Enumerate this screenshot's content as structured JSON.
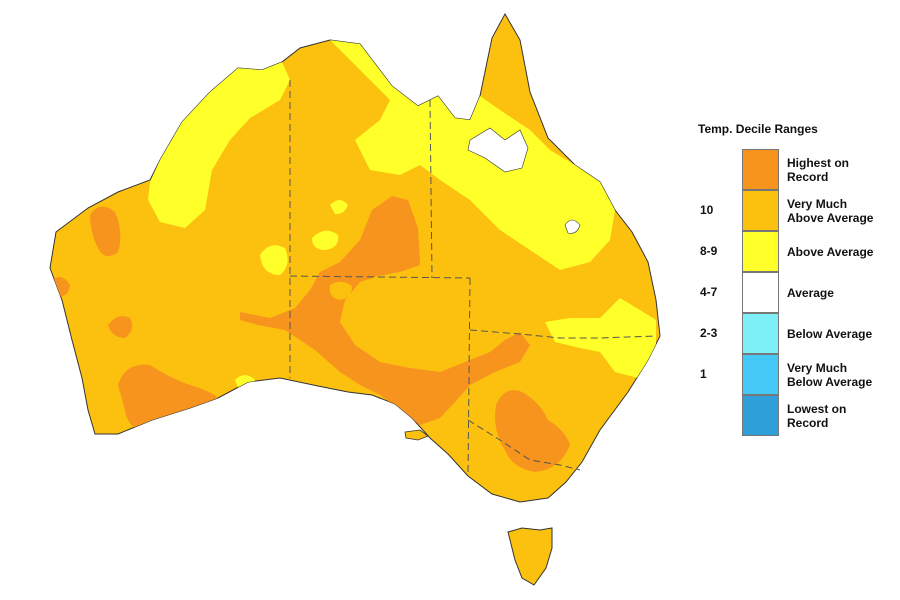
{
  "legend": {
    "title": "Temp. Decile Ranges",
    "items": [
      {
        "value": "",
        "label": "Highest on\nRecord",
        "color": "#f7941d"
      },
      {
        "value": "10",
        "label": "Very Much\nAbove Average",
        "color": "#fcc10e"
      },
      {
        "value": "8-9",
        "label": "Above Average",
        "color": "#ffff2a"
      },
      {
        "value": "4-7",
        "label": "Average",
        "color": "#ffffff"
      },
      {
        "value": "2-3",
        "label": "Below Average",
        "color": "#7ef0f7"
      },
      {
        "value": "1",
        "label": "Very Much\nBelow Average",
        "color": "#45c8f5"
      },
      {
        "value": "",
        "label": "Lowest on\nRecord",
        "color": "#2e9fd8"
      }
    ]
  }
}
